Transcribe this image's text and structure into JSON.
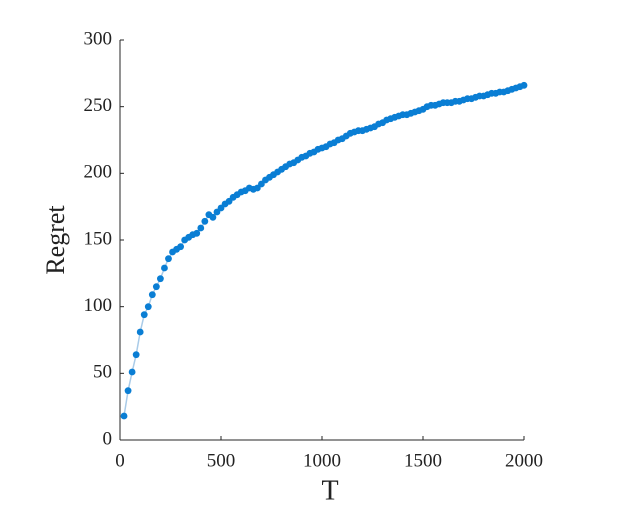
{
  "chart_data": {
    "type": "line",
    "xlabel": "T",
    "ylabel": "Regret",
    "x": [
      20,
      40,
      60,
      80,
      100,
      120,
      140,
      160,
      180,
      200,
      220,
      240,
      260,
      280,
      300,
      320,
      340,
      360,
      380,
      400,
      420,
      440,
      460,
      480,
      500,
      520,
      540,
      560,
      580,
      600,
      620,
      640,
      660,
      680,
      700,
      720,
      740,
      760,
      780,
      800,
      820,
      840,
      860,
      880,
      900,
      920,
      940,
      960,
      980,
      1000,
      1020,
      1040,
      1060,
      1080,
      1100,
      1120,
      1140,
      1160,
      1180,
      1200,
      1220,
      1240,
      1260,
      1280,
      1300,
      1320,
      1340,
      1360,
      1380,
      1400,
      1420,
      1440,
      1460,
      1480,
      1500,
      1520,
      1540,
      1560,
      1580,
      1600,
      1620,
      1640,
      1660,
      1680,
      1700,
      1720,
      1740,
      1760,
      1780,
      1800,
      1820,
      1840,
      1860,
      1880,
      1900,
      1920,
      1940,
      1960,
      1980,
      2000
    ],
    "values": [
      18,
      37,
      51,
      64,
      81,
      94,
      100,
      109,
      115,
      121,
      129,
      136,
      141,
      143,
      145,
      150,
      152,
      154,
      155,
      159,
      164,
      169,
      167,
      171,
      174,
      177,
      179,
      182,
      184,
      186,
      187,
      189,
      188,
      189,
      192,
      195,
      197,
      199,
      201,
      203,
      205,
      207,
      208,
      210,
      212,
      213,
      215,
      216,
      218,
      219,
      220,
      222,
      223,
      225,
      226,
      228,
      230,
      231,
      232,
      232,
      233,
      234,
      235,
      237,
      238,
      240,
      241,
      242,
      243,
      244,
      244,
      245,
      246,
      247,
      248,
      250,
      251,
      251,
      252,
      253,
      253,
      253,
      254,
      254,
      255,
      256,
      256,
      257,
      258,
      258,
      259,
      260,
      260,
      261,
      261,
      262,
      263,
      264,
      265,
      266
    ],
    "color": "#0a7ed4",
    "line_color": "#a9cbe8",
    "xlim": [
      0,
      2000
    ],
    "xticks": [
      0,
      500,
      1000,
      1500,
      2000
    ],
    "ylim": [
      0,
      300
    ],
    "yticks": [
      0,
      50,
      100,
      150,
      200,
      250,
      300
    ]
  }
}
